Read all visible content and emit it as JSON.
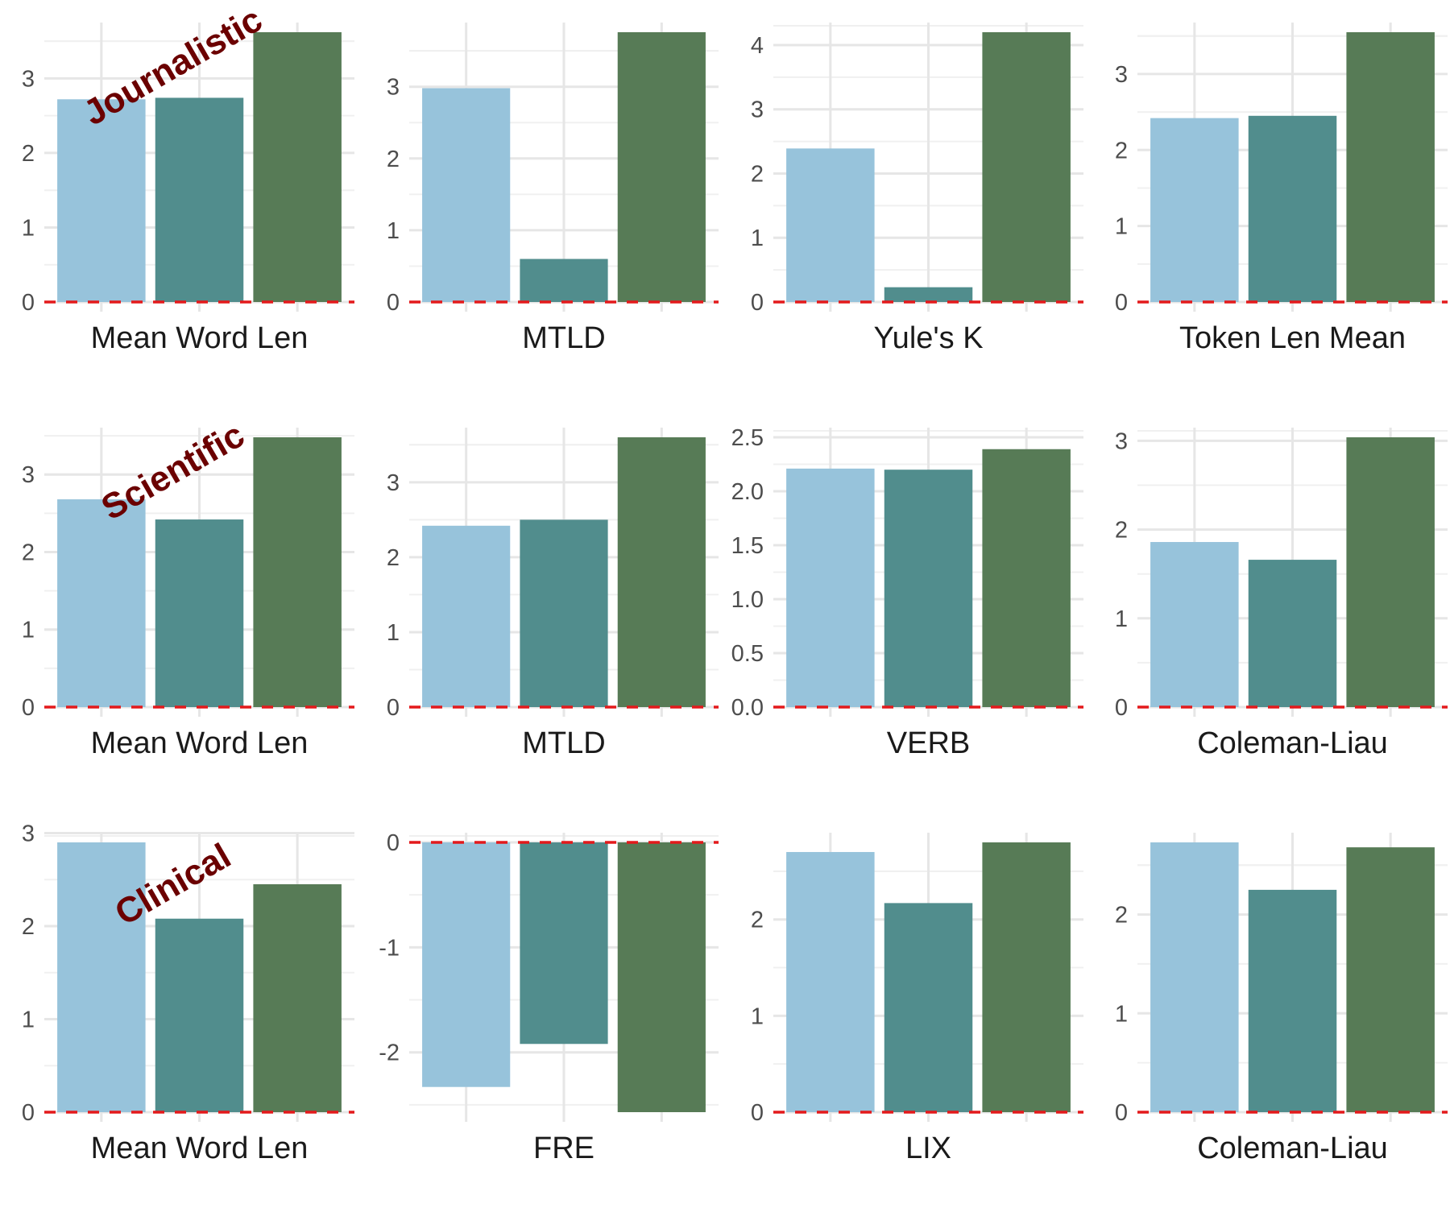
{
  "colors": {
    "series": [
      "#97c3db",
      "#518d8d",
      "#577b56"
    ],
    "grid_major": "#e6e6e6",
    "grid_minor": "#f0f0f0",
    "zero_line": "#e31a1c",
    "annotation": "#6b0000"
  },
  "chart_data": [
    {
      "type": "bar",
      "row": "Journalistic",
      "annotation": "Journalistic",
      "xlabel": "Mean Word Len",
      "values": [
        2.72,
        2.74,
        3.62
      ],
      "ylim": [
        0,
        3.62
      ],
      "yticks": [
        0,
        1,
        2,
        3
      ],
      "grid": true,
      "zero_line": "dashed"
    },
    {
      "type": "bar",
      "row": "Journalistic",
      "xlabel": "MTLD",
      "values": [
        2.98,
        0.6,
        3.76
      ],
      "ylim": [
        0,
        3.76
      ],
      "yticks": [
        0,
        1,
        2,
        3
      ],
      "grid": true,
      "zero_line": "dashed"
    },
    {
      "type": "bar",
      "row": "Journalistic",
      "xlabel": "Yule's K",
      "values": [
        2.39,
        0.23,
        4.2
      ],
      "ylim": [
        0,
        4.2
      ],
      "yticks": [
        0,
        1,
        2,
        3,
        4
      ],
      "grid": true,
      "zero_line": "dashed"
    },
    {
      "type": "bar",
      "row": "Journalistic",
      "xlabel": "Token Len Mean",
      "values": [
        2.42,
        2.45,
        3.55
      ],
      "ylim": [
        0,
        3.55
      ],
      "yticks": [
        0,
        1,
        2,
        3
      ],
      "grid": true,
      "zero_line": "dashed"
    },
    {
      "type": "bar",
      "row": "Scientific",
      "annotation": "Scientific",
      "xlabel": "Mean Word Len",
      "values": [
        2.68,
        2.42,
        3.48
      ],
      "ylim": [
        0,
        3.48
      ],
      "yticks": [
        0,
        1,
        2,
        3
      ],
      "grid": true,
      "zero_line": "dashed"
    },
    {
      "type": "bar",
      "row": "Scientific",
      "xlabel": "MTLD",
      "values": [
        2.42,
        2.5,
        3.6
      ],
      "ylim": [
        0,
        3.6
      ],
      "yticks": [
        0,
        1,
        2,
        3
      ],
      "grid": true,
      "zero_line": "dashed"
    },
    {
      "type": "bar",
      "row": "Scientific",
      "xlabel": "VERB",
      "values": [
        2.21,
        2.2,
        2.39
      ],
      "ylim": [
        0,
        2.5
      ],
      "yticks": [
        0.0,
        0.5,
        1.0,
        1.5,
        2.0,
        2.5
      ],
      "tick_decimals": 1,
      "grid": true,
      "zero_line": "dashed"
    },
    {
      "type": "bar",
      "row": "Scientific",
      "xlabel": "Coleman-Liau",
      "values": [
        1.86,
        1.66,
        3.04
      ],
      "ylim": [
        0,
        3.04
      ],
      "yticks": [
        0,
        1,
        2,
        3
      ],
      "grid": true,
      "zero_line": "dashed"
    },
    {
      "type": "bar",
      "row": "Clinical",
      "annotation": "Clinical",
      "xlabel": "Mean Word Len",
      "values": [
        2.9,
        2.08,
        2.45
      ],
      "ylim": [
        0,
        2.9
      ],
      "yticks": [
        0,
        1,
        2,
        3
      ],
      "grid": true,
      "zero_line": "dashed"
    },
    {
      "type": "bar",
      "row": "Clinical",
      "xlabel": "FRE",
      "values": [
        -2.33,
        -1.92,
        -2.57
      ],
      "ylim": [
        -2.57,
        0
      ],
      "yticks": [
        -2,
        -1,
        0
      ],
      "grid": true,
      "zero_line": "dashed"
    },
    {
      "type": "bar",
      "row": "Clinical",
      "xlabel": "LIX",
      "values": [
        2.7,
        2.17,
        2.8
      ],
      "ylim": [
        0,
        2.8
      ],
      "yticks": [
        0,
        1,
        2
      ],
      "grid": true,
      "zero_line": "dashed"
    },
    {
      "type": "bar",
      "row": "Clinical",
      "xlabel": "Coleman-Liau",
      "values": [
        2.73,
        2.25,
        2.68
      ],
      "ylim": [
        0,
        2.73
      ],
      "yticks": [
        0,
        1,
        2
      ],
      "grid": true,
      "zero_line": "dashed"
    }
  ]
}
